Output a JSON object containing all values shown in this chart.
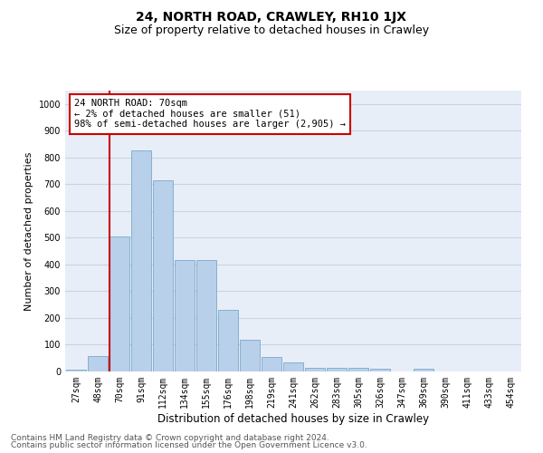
{
  "title": "24, NORTH ROAD, CRAWLEY, RH10 1JX",
  "subtitle": "Size of property relative to detached houses in Crawley",
  "xlabel": "Distribution of detached houses by size in Crawley",
  "ylabel": "Number of detached properties",
  "categories": [
    "27sqm",
    "48sqm",
    "70sqm",
    "91sqm",
    "112sqm",
    "134sqm",
    "155sqm",
    "176sqm",
    "198sqm",
    "219sqm",
    "241sqm",
    "262sqm",
    "283sqm",
    "305sqm",
    "326sqm",
    "347sqm",
    "369sqm",
    "390sqm",
    "411sqm",
    "433sqm",
    "454sqm"
  ],
  "values": [
    8,
    58,
    505,
    825,
    715,
    418,
    418,
    230,
    120,
    55,
    35,
    15,
    12,
    15,
    10,
    0,
    10,
    0,
    0,
    0,
    0
  ],
  "bar_color": "#b8d0ea",
  "bar_edgecolor": "#6a9ec0",
  "highlight_index": 2,
  "highlight_color": "#cc0000",
  "annotation_text": "24 NORTH ROAD: 70sqm\n← 2% of detached houses are smaller (51)\n98% of semi-detached houses are larger (2,905) →",
  "annotation_box_color": "#ffffff",
  "annotation_box_edgecolor": "#cc0000",
  "ylim": [
    0,
    1050
  ],
  "yticks": [
    0,
    100,
    200,
    300,
    400,
    500,
    600,
    700,
    800,
    900,
    1000
  ],
  "grid_color": "#c8d4e4",
  "background_color": "#e8eef8",
  "footer_line1": "Contains HM Land Registry data © Crown copyright and database right 2024.",
  "footer_line2": "Contains public sector information licensed under the Open Government Licence v3.0.",
  "title_fontsize": 10,
  "subtitle_fontsize": 9,
  "xlabel_fontsize": 8.5,
  "ylabel_fontsize": 8,
  "tick_fontsize": 7,
  "annotation_fontsize": 7.5,
  "footer_fontsize": 6.5
}
